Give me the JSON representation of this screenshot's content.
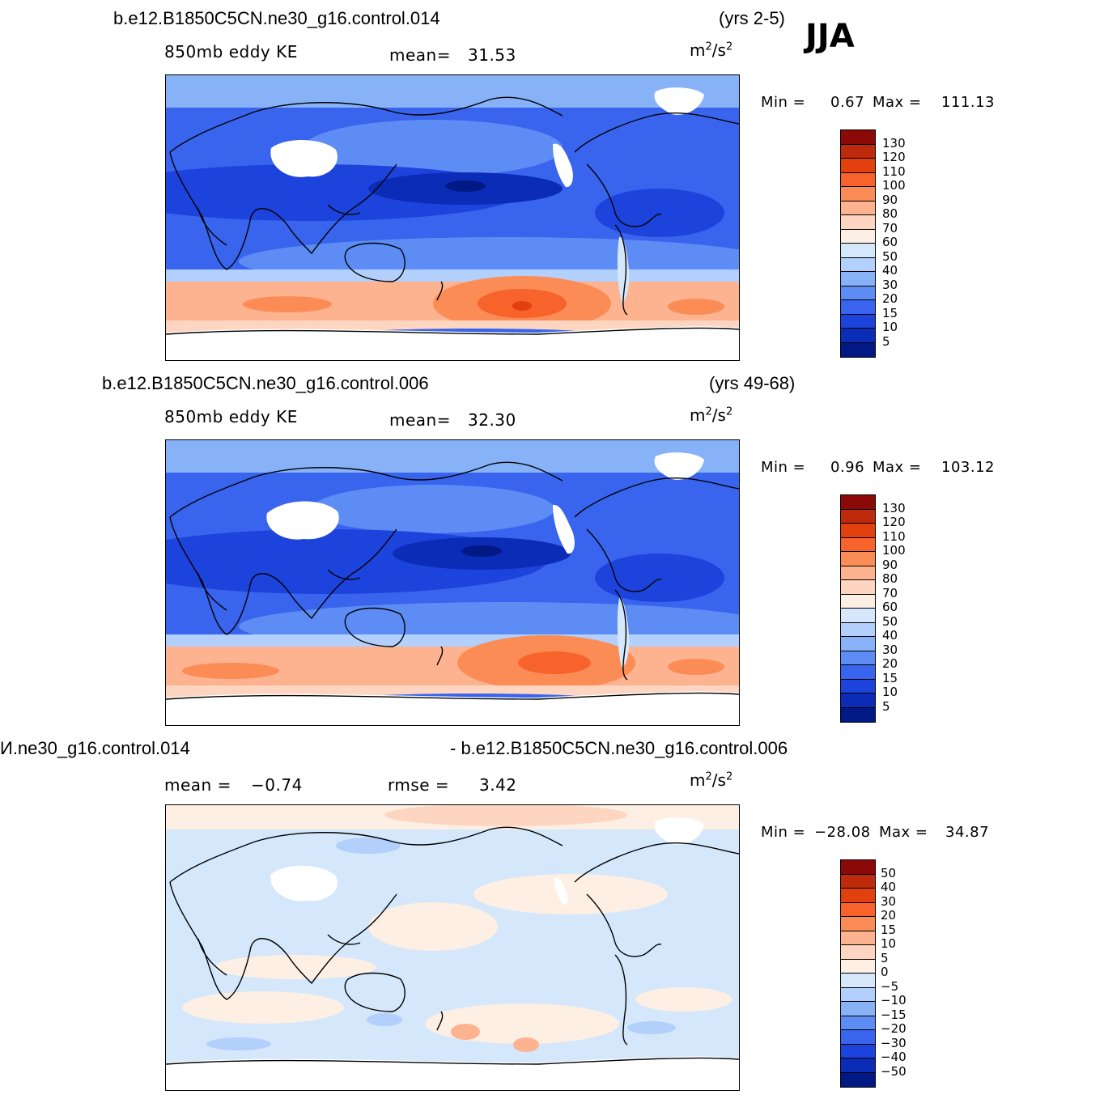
{
  "season": "JJA",
  "units": {
    "base": "m",
    "exp1": "2",
    "mid": "/s",
    "exp2": "2"
  },
  "panels": [
    {
      "case": "b.e12.B1850C5CN.ne30_g16.control.014",
      "years": "(yrs 2-5)",
      "variable": "850mb eddy KE",
      "stat1_label": "mean=",
      "stat1_value": "31.53",
      "min_label": "Min =",
      "min_value": "0.67",
      "max_label": "Max =",
      "max_value": "111.13"
    },
    {
      "case": "b.e12.B1850C5CN.ne30_g16.control.006",
      "years": "(yrs 49-68)",
      "variable": "850mb eddy KE",
      "stat1_label": "mean=",
      "stat1_value": "32.30",
      "min_label": "Min =",
      "min_value": "0.96",
      "max_label": "Max =",
      "max_value": "103.12"
    },
    {
      "case_left": "И.ne30_g16.control.014",
      "case_right": "- b.e12.B1850C5CN.ne30_g16.control.006",
      "stat1_label": "mean =",
      "stat1_value": "−0.74",
      "stat2_label": "rmse =",
      "stat2_value": "3.42",
      "min_label": "Min =",
      "min_value": "−28.08",
      "max_label": "Max =",
      "max_value": "34.87"
    }
  ],
  "colorbar_abs": {
    "labels": [
      "130",
      "120",
      "110",
      "100",
      "90",
      "80",
      "70",
      "60",
      "50",
      "40",
      "30",
      "20",
      "15",
      "10",
      "5"
    ],
    "colors": [
      "#8b0a07",
      "#bd2a0c",
      "#e2400f",
      "#f8622b",
      "#fc8c55",
      "#fdb290",
      "#fed5c0",
      "#fdefe3",
      "#d4e7fb",
      "#b2d0fb",
      "#87b2f8",
      "#5d8df4",
      "#3864ee",
      "#1c43db",
      "#0a2cb7",
      "#011984"
    ]
  },
  "colorbar_diff": {
    "labels": [
      "50",
      "40",
      "30",
      "20",
      "15",
      "10",
      "5",
      "0",
      "−5",
      "−10",
      "−15",
      "−20",
      "−30",
      "−40",
      "−50"
    ],
    "colors": [
      "#8b0a07",
      "#bd2a0c",
      "#e2400f",
      "#f8622b",
      "#fc8c55",
      "#fdb290",
      "#fed5c0",
      "#fdefe3",
      "#d4e7fb",
      "#b2d0fb",
      "#87b2f8",
      "#5d8df4",
      "#3864ee",
      "#1c43db",
      "#0a2cb7",
      "#011984"
    ]
  }
}
